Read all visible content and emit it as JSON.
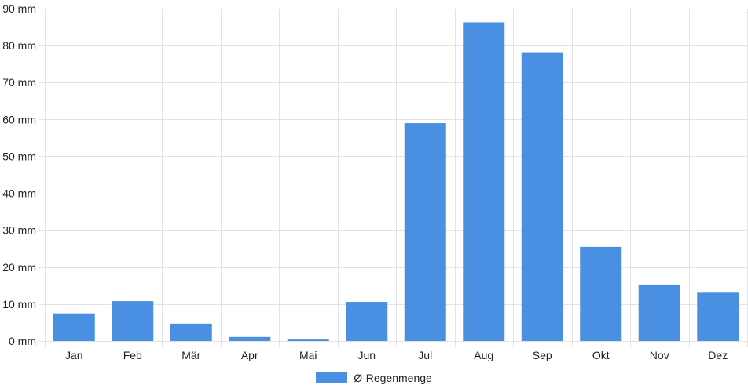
{
  "chart_data": {
    "type": "bar",
    "categories": [
      "Jan",
      "Feb",
      "Mär",
      "Apr",
      "Mai",
      "Jun",
      "Jul",
      "Aug",
      "Sep",
      "Okt",
      "Nov",
      "Dez"
    ],
    "series": [
      {
        "name": "Ø-Regenmenge",
        "values": [
          7.5,
          10.8,
          4.7,
          1.1,
          0.4,
          10.6,
          59,
          86.3,
          78.2,
          25.5,
          15.3,
          13.1
        ],
        "color": "#4a90e2"
      }
    ],
    "y_tick_values": [
      0,
      10,
      20,
      30,
      40,
      50,
      60,
      70,
      80,
      90
    ],
    "y_tick_labels": [
      "0 mm",
      "10 mm",
      "20 mm",
      "30 mm",
      "40 mm",
      "50 mm",
      "60 mm",
      "70 mm",
      "80 mm",
      "90 mm"
    ],
    "ylim": [
      0,
      90
    ],
    "grid": true,
    "legend_position": "bottom-center"
  }
}
